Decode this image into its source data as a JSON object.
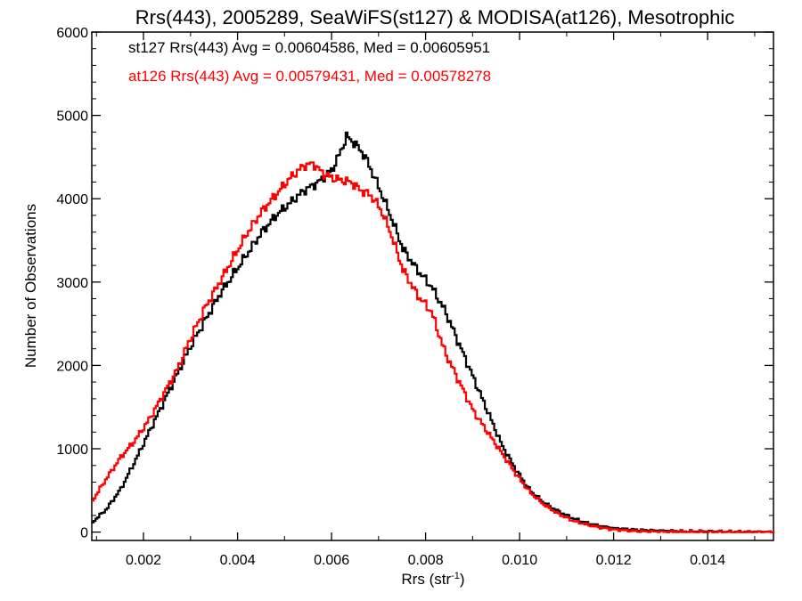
{
  "chart_data": {
    "type": "line",
    "title": "Rrs(443), 2005289, SeaWiFS(st127) & MODISA(at126), Mesotrophic",
    "xlabel": "Rrs (str",
    "xlabel_superscript": "-1",
    "xlabel_suffix": ")",
    "ylabel": "Number of Observations",
    "xlim": [
      0.0009,
      0.0154
    ],
    "ylim": [
      -100,
      6000
    ],
    "x_ticks": [
      0.002,
      0.004,
      0.006,
      0.008,
      0.01,
      0.012,
      0.014
    ],
    "x_tick_labels": [
      "0.002",
      "0.004",
      "0.006",
      "0.008",
      "0.010",
      "0.012",
      "0.014"
    ],
    "y_ticks": [
      0,
      1000,
      2000,
      3000,
      4000,
      5000,
      6000
    ],
    "y_tick_labels": [
      "0",
      "1000",
      "2000",
      "3000",
      "4000",
      "5000",
      "6000"
    ],
    "grid": false,
    "legend_position": "top-left",
    "series": [
      {
        "name": "st127",
        "color": "#000000",
        "annotation": "st127 Rrs(443) Avg = 0.00604586, Med = 0.00605951",
        "x": [
          0.0009,
          0.0012,
          0.0015,
          0.0018,
          0.0021,
          0.0024,
          0.0027,
          0.003,
          0.0033,
          0.0036,
          0.0039,
          0.0042,
          0.0045,
          0.0048,
          0.0051,
          0.0054,
          0.0057,
          0.006,
          0.0062,
          0.0063,
          0.0065,
          0.0067,
          0.0069,
          0.0072,
          0.0075,
          0.0078,
          0.0081,
          0.0084,
          0.0087,
          0.009,
          0.0093,
          0.0096,
          0.0099,
          0.0102,
          0.0105,
          0.0108,
          0.0111,
          0.0114,
          0.0117,
          0.012,
          0.0125,
          0.013,
          0.0135,
          0.014,
          0.0145,
          0.015,
          0.0154
        ],
        "y": [
          120,
          280,
          520,
          850,
          1200,
          1550,
          1900,
          2250,
          2550,
          2850,
          3100,
          3350,
          3600,
          3800,
          3950,
          4100,
          4200,
          4350,
          4600,
          4750,
          4650,
          4500,
          4250,
          3850,
          3400,
          3150,
          2950,
          2650,
          2250,
          1850,
          1450,
          1050,
          750,
          500,
          350,
          250,
          170,
          110,
          70,
          45,
          25,
          15,
          10,
          8,
          5,
          3,
          2
        ]
      },
      {
        "name": "at126",
        "color": "#ff0000",
        "annotation": "at126 Rrs(443) Avg = 0.00579431, Med = 0.00578278",
        "x": [
          0.0009,
          0.0012,
          0.0015,
          0.0018,
          0.0021,
          0.0024,
          0.0027,
          0.003,
          0.0033,
          0.0036,
          0.0039,
          0.0042,
          0.0045,
          0.0048,
          0.0051,
          0.0054,
          0.0056,
          0.0058,
          0.006,
          0.0062,
          0.0064,
          0.0066,
          0.0068,
          0.007,
          0.0072,
          0.0075,
          0.0078,
          0.0081,
          0.0084,
          0.0087,
          0.009,
          0.0093,
          0.0096,
          0.0099,
          0.0102,
          0.0105,
          0.0108,
          0.0111,
          0.0114,
          0.0117,
          0.012,
          0.0125,
          0.013,
          0.0135,
          0.014,
          0.0145,
          0.015,
          0.0154
        ],
        "y": [
          380,
          650,
          900,
          1100,
          1350,
          1650,
          1950,
          2350,
          2700,
          3000,
          3300,
          3600,
          3850,
          4050,
          4250,
          4400,
          4420,
          4300,
          4250,
          4220,
          4200,
          4100,
          4050,
          3900,
          3650,
          3150,
          2850,
          2650,
          2150,
          1800,
          1450,
          1200,
          950,
          700,
          480,
          330,
          220,
          140,
          90,
          55,
          30,
          12,
          5,
          3,
          2,
          1,
          0,
          0
        ]
      }
    ]
  }
}
